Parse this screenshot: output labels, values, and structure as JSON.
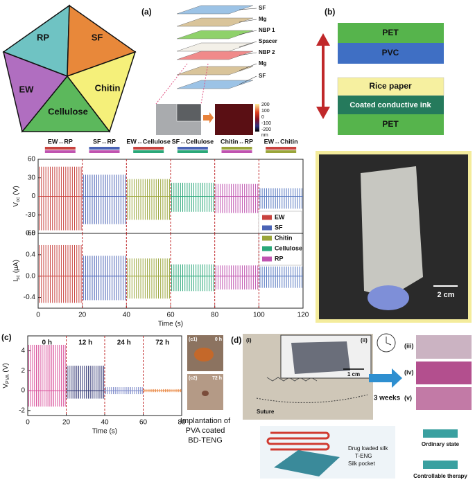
{
  "figure": {
    "panels": [
      "(a)",
      "(b)",
      "(c)",
      "(d)"
    ],
    "pentagon": [
      "RP",
      "SF",
      "EW",
      "Chitin",
      "Cellulose"
    ],
    "layers": [
      "SF",
      "Mg",
      "NBP 1",
      "Spacer",
      "NBP 2",
      "Mg",
      "SF"
    ],
    "colorbar": {
      "ticks": [
        "200",
        "100",
        "0",
        "-100",
        "-200"
      ],
      "unit": "nm"
    },
    "device_b": [
      "PET",
      "PVC",
      "Rice paper",
      "Coated conductive ink",
      "PET"
    ],
    "scale_b": "2 cm",
    "c1": {
      "label": "(c1)",
      "time": "0 h"
    },
    "c2": {
      "label": "(c2)",
      "time": "72 h"
    },
    "caption_c": [
      "Implantation of",
      "PVA coated",
      "BD-TENG"
    ],
    "d": {
      "sub": [
        "(i)",
        "(ii)",
        "(iii)",
        "(iv)",
        "(v)"
      ],
      "scale": "1 cm",
      "suture": "Suture",
      "duration": "3 weeks",
      "parts": [
        "Drug loaded silk",
        "T-ENG",
        "Silk pocket"
      ],
      "states": [
        "Ordinary state",
        "Controllable therapy"
      ]
    }
  },
  "chart_data": [
    {
      "type": "pulse",
      "ylabel": "V",
      "ylabel_sub": "oc",
      "ylabel_unit": "(V)",
      "pairs": [
        "EW↔RP",
        "SF↔RP",
        "EW↔Cellulose",
        "SF↔Cellulose",
        "Chitin↔RP",
        "EW↔Chitin"
      ],
      "pair_colors": [
        [
          "#c8423e",
          "#c054b0"
        ],
        [
          "#4a63b5",
          "#c054b0"
        ],
        [
          "#c8423e",
          "#2aa879"
        ],
        [
          "#4a63b5",
          "#2aa879"
        ],
        [
          "#9aa53a",
          "#c054b0"
        ],
        [
          "#c8423e",
          "#9aa53a"
        ]
      ],
      "xlim": [
        0,
        120
      ],
      "ylim": [
        -60,
        60
      ],
      "yticks": [
        60,
        30,
        0,
        -30,
        -60
      ],
      "segments": [
        {
          "x": [
            0,
            20
          ],
          "max": 48,
          "min": -55,
          "color": "#c8423e"
        },
        {
          "x": [
            20,
            40
          ],
          "max": 35,
          "min": -45,
          "color": "#4a63b5"
        },
        {
          "x": [
            40,
            60
          ],
          "max": 28,
          "min": -38,
          "color": "#9aa53a"
        },
        {
          "x": [
            60,
            80
          ],
          "max": 22,
          "min": -25,
          "color": "#2aa879"
        },
        {
          "x": [
            80,
            100
          ],
          "max": 20,
          "min": -27,
          "color": "#c054b0"
        },
        {
          "x": [
            100,
            120
          ],
          "max": 13,
          "min": -20,
          "color": "#5577c0"
        }
      ],
      "legend": [
        {
          "name": "EW",
          "color": "#c8423e"
        },
        {
          "name": "SF",
          "color": "#4a63b5"
        },
        {
          "name": "Chitin",
          "color": "#9aa53a"
        },
        {
          "name": "Cellulose",
          "color": "#2aa879"
        },
        {
          "name": "RP",
          "color": "#c054b0"
        }
      ]
    },
    {
      "type": "pulse",
      "ylabel": "I",
      "ylabel_sub": "sc",
      "ylabel_unit": "(μA)",
      "xlabel": "Time (s)",
      "xlim": [
        0,
        120
      ],
      "xticks": [
        0,
        20,
        40,
        60,
        80,
        100,
        120
      ],
      "ylim": [
        -0.6,
        0.8
      ],
      "yticks": [
        {
          "value": 0.8,
          "label": "0.8"
        },
        {
          "value": 0.4,
          "label": "0.4"
        },
        {
          "value": 0,
          "label": "0.0"
        },
        {
          "value": -0.4,
          "label": "-0.4"
        }
      ],
      "segments": [
        {
          "x": [
            0,
            20
          ],
          "max": 0.58,
          "min": -0.5,
          "color": "#c8423e"
        },
        {
          "x": [
            20,
            40
          ],
          "max": 0.38,
          "min": -0.45,
          "color": "#4a63b5"
        },
        {
          "x": [
            40,
            60
          ],
          "max": 0.33,
          "min": -0.42,
          "color": "#9aa53a"
        },
        {
          "x": [
            60,
            80
          ],
          "max": 0.22,
          "min": -0.28,
          "color": "#2aa879"
        },
        {
          "x": [
            80,
            100
          ],
          "max": 0.2,
          "min": -0.25,
          "color": "#c054b0"
        },
        {
          "x": [
            100,
            120
          ],
          "max": 0.18,
          "min": -0.22,
          "color": "#5577c0"
        }
      ]
    },
    {
      "type": "pulse",
      "ylabel": "V",
      "ylabel_sub": "PVA",
      "ylabel_unit": "(V)",
      "xlabel": "Time (s)",
      "xlim": [
        0,
        80
      ],
      "xticks": [
        0,
        20,
        40,
        60,
        80
      ],
      "ylim": [
        -2.5,
        5.5
      ],
      "yticks": [
        4,
        2,
        0,
        -2
      ],
      "segments": [
        {
          "label": "0 h",
          "x": [
            0,
            20
          ],
          "max": 4.6,
          "min": -1.6,
          "color": "#d94f9a"
        },
        {
          "label": "12 h",
          "x": [
            20,
            40
          ],
          "max": 2.5,
          "min": -0.8,
          "color": "#2c3170"
        },
        {
          "label": "24 h",
          "x": [
            40,
            60
          ],
          "max": 0.35,
          "min": -0.35,
          "color": "#7b88c8"
        },
        {
          "label": "72 h",
          "x": [
            60,
            80
          ],
          "max": 0.15,
          "min": -0.15,
          "color": "#e8823a"
        }
      ]
    }
  ]
}
